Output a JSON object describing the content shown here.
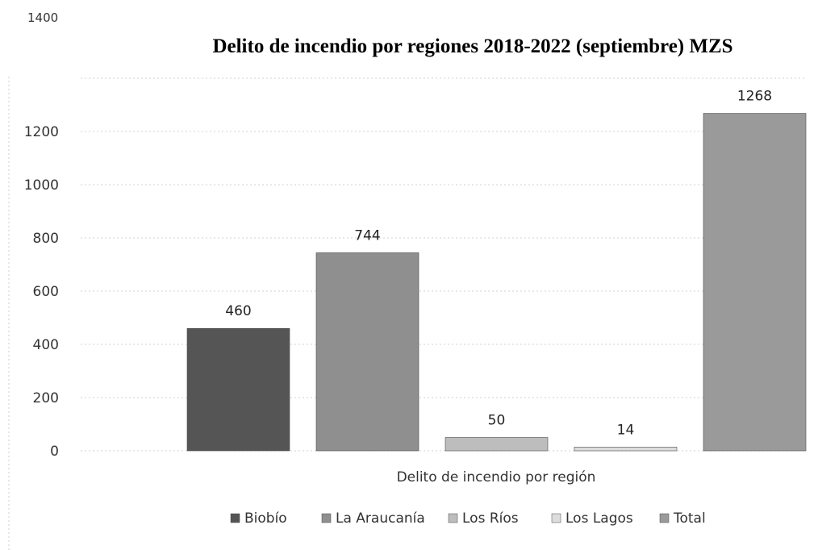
{
  "chart_data": {
    "type": "bar",
    "title": "Delito de incendio por regiones 2018-2022 (septiembre) MZS",
    "xlabel": "Delito de incendio por región",
    "ylabel": "",
    "ylim": [
      0,
      1400
    ],
    "yticks": [
      0,
      200,
      400,
      600,
      800,
      1000,
      1200,
      1400
    ],
    "yticks_labels": [
      "0",
      "200",
      "400",
      "600",
      "800",
      "1000",
      "1200",
      "1400"
    ],
    "grid": true,
    "legend_position": "bottom",
    "categories": [
      "Delito de incendio por región"
    ],
    "series": [
      {
        "name": "Biobío",
        "values": [
          460
        ],
        "label": "460",
        "color": "#555555"
      },
      {
        "name": "La Araucanía",
        "values": [
          744
        ],
        "label": "744",
        "color": "#8f8f8f"
      },
      {
        "name": "Los Ríos",
        "values": [
          50
        ],
        "label": "50",
        "color": "#bdbdbd"
      },
      {
        "name": "Los Lagos",
        "values": [
          14
        ],
        "label": "14",
        "color": "#dcdcdc"
      },
      {
        "name": "Total",
        "values": [
          1268
        ],
        "label": "1268",
        "color": "#9a9a9a"
      }
    ]
  }
}
